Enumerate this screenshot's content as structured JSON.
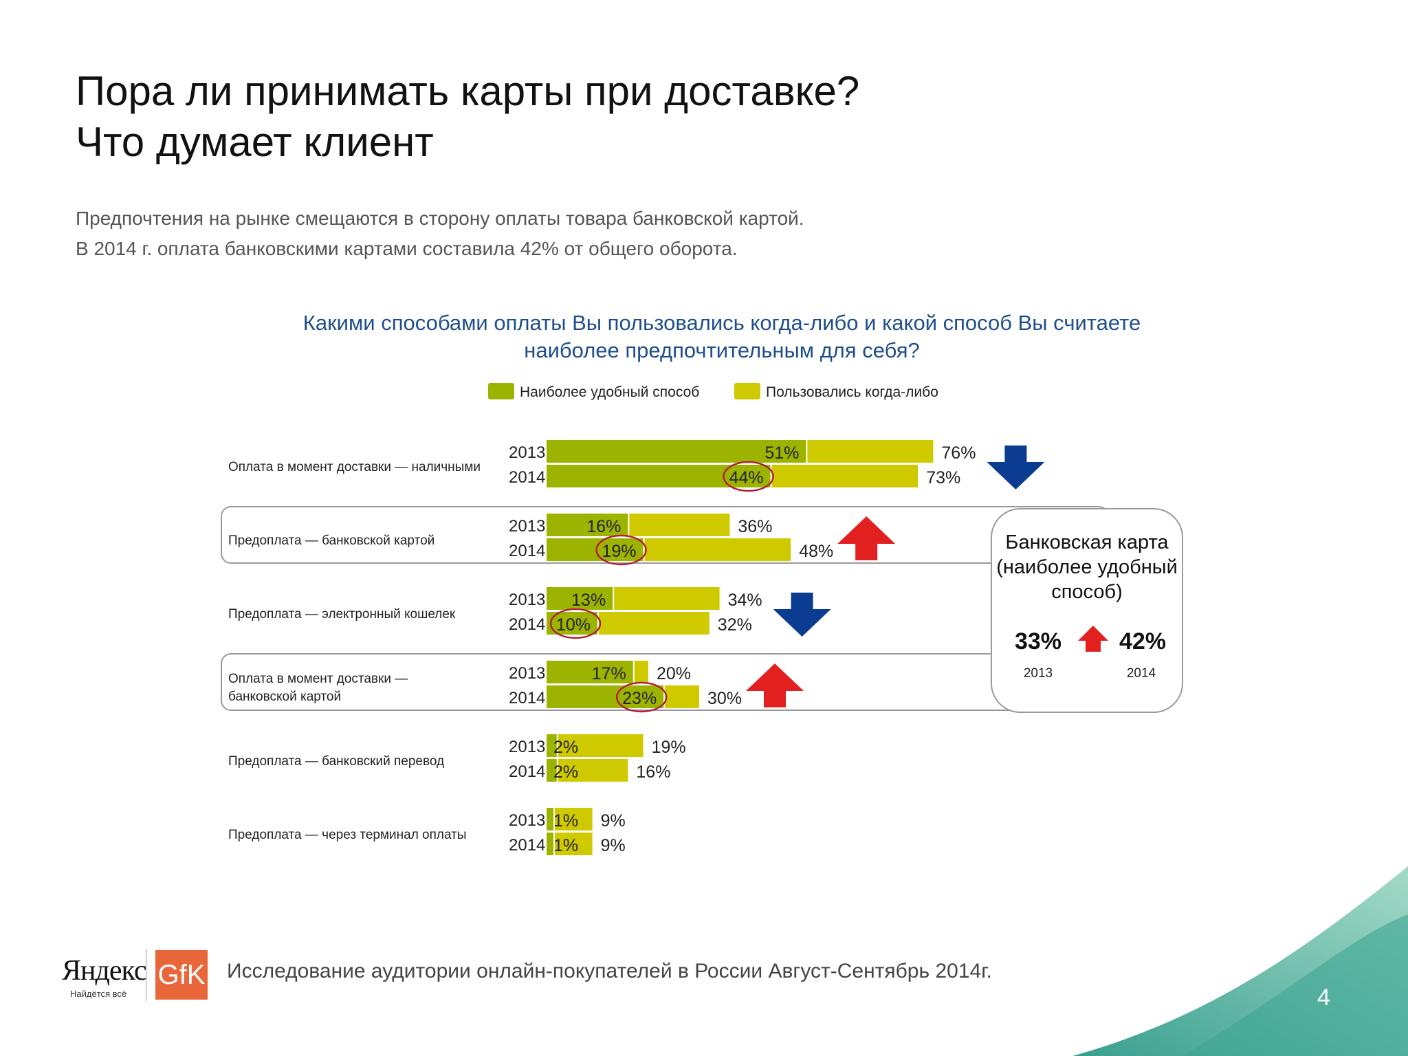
{
  "slide": {
    "title_line1": "Пора ли принимать карты при доставке?",
    "title_line2": "Что думает клиент",
    "subtitle_line1": "Предпочтения на рынке смещаются в сторону оплаты товара банковской картой.",
    "subtitle_line2": "В 2014 г. оплата банковскими картами составила 42% от общего оборота."
  },
  "footer": {
    "yandex_logo_text": "Яндекс",
    "yandex_tagline": "Найдётся всё",
    "gfk_logo_text": "GfK",
    "note": "Исследование аудитории онлайн-покупателей в России Август-Сентябрь 2014г.",
    "page_number": "4"
  },
  "colors": {
    "most_convenient": "#9cb400",
    "used_ever": "#cfca00",
    "title_blue": "#1f4e8c",
    "arrow_blue": "#0a3d91",
    "arrow_red": "#e32020",
    "circle": "#b0213a",
    "wave": "#5cb9a0"
  },
  "chart_data": {
    "type": "bar",
    "orientation": "horizontal",
    "title_line1": "Какими способами оплаты Вы пользовались когда-либо и какой способ Вы считаете",
    "title_line2": "наиболее предпочтительным для себя?",
    "legend_placement": "top",
    "xlim": [
      0,
      100
    ],
    "series": [
      {
        "name": "Наиболее удобный способ",
        "color": "#9cb400"
      },
      {
        "name": "Пользовались когда-либо",
        "color": "#cfca00"
      }
    ],
    "categories": [
      {
        "label": [
          "Оплата в момент доставки — наличными"
        ],
        "trend": "down",
        "highlight": false,
        "rows": [
          {
            "year": "2013",
            "most_convenient": 51,
            "used_ever": 76
          },
          {
            "year": "2014",
            "most_convenient": 44,
            "used_ever": 73,
            "circled": true
          }
        ]
      },
      {
        "label": [
          "Предоплата — банковской картой"
        ],
        "trend": "up",
        "highlight": true,
        "rows": [
          {
            "year": "2013",
            "most_convenient": 16,
            "used_ever": 36
          },
          {
            "year": "2014",
            "most_convenient": 19,
            "used_ever": 48,
            "circled": true
          }
        ]
      },
      {
        "label": [
          "Предоплата — электронный кошелек"
        ],
        "trend": "down",
        "highlight": false,
        "rows": [
          {
            "year": "2013",
            "most_convenient": 13,
            "used_ever": 34
          },
          {
            "year": "2014",
            "most_convenient": 10,
            "used_ever": 32,
            "circled": true
          }
        ]
      },
      {
        "label": [
          "Оплата в момент доставки —",
          "банковской картой"
        ],
        "trend": "up",
        "highlight": true,
        "rows": [
          {
            "year": "2013",
            "most_convenient": 17,
            "used_ever": 20
          },
          {
            "year": "2014",
            "most_convenient": 23,
            "used_ever": 30,
            "circled": true
          }
        ]
      },
      {
        "label": [
          "Предоплата — банковский перевод"
        ],
        "trend": "none",
        "highlight": false,
        "rows": [
          {
            "year": "2013",
            "most_convenient": 2,
            "used_ever": 19
          },
          {
            "year": "2014",
            "most_convenient": 2,
            "used_ever": 16
          }
        ]
      },
      {
        "label": [
          "Предоплата — через терминал оплаты"
        ],
        "trend": "none",
        "highlight": false,
        "rows": [
          {
            "year": "2013",
            "most_convenient": 1,
            "used_ever": 9
          },
          {
            "year": "2014",
            "most_convenient": 1,
            "used_ever": 9
          }
        ]
      }
    ],
    "callout": {
      "lines": [
        "Банковская карта",
        "(наиболее удобный",
        "способ)"
      ],
      "value_2013": "33%",
      "value_2014": "42%",
      "year_2013": "2013",
      "year_2014": "2014",
      "trend": "up"
    }
  }
}
